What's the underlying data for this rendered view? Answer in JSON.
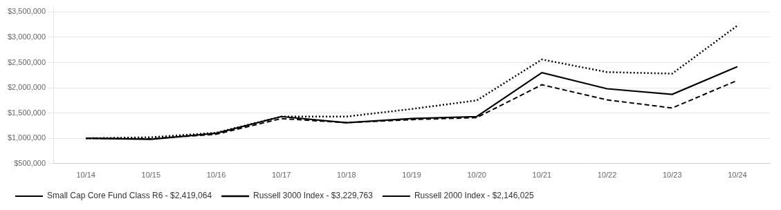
{
  "chart_data": {
    "type": "line",
    "categories": [
      "10/14",
      "10/15",
      "10/16",
      "10/17",
      "10/18",
      "10/19",
      "10/20",
      "10/21",
      "10/22",
      "10/23",
      "10/24"
    ],
    "series": [
      {
        "name": "Small Cap Core Fund Class R6 - $2,419,064",
        "color": "#000000",
        "line_style": "solid",
        "values": [
          1000000,
          980000,
          1100000,
          1430000,
          1310000,
          1390000,
          1430000,
          2300000,
          1980000,
          1870000,
          2419064
        ]
      },
      {
        "name": "Russell 3000 Index - $3,229,763",
        "color": "#000000",
        "line_style": "dotted",
        "values": [
          1000000,
          1020000,
          1110000,
          1430000,
          1430000,
          1580000,
          1750000,
          2560000,
          2310000,
          2280000,
          3229763
        ]
      },
      {
        "name": "Russell 2000 Index - $2,146,025",
        "color": "#000000",
        "line_style": "dashed",
        "values": [
          1000000,
          990000,
          1080000,
          1390000,
          1310000,
          1370000,
          1410000,
          2060000,
          1760000,
          1600000,
          2146025
        ]
      }
    ],
    "ylim": [
      500000,
      3600000
    ],
    "yticks": [
      {
        "value": 500000,
        "label": "$500,000"
      },
      {
        "value": 1000000,
        "label": "$1,000,000"
      },
      {
        "value": 1500000,
        "label": "$1,500,000"
      },
      {
        "value": 2000000,
        "label": "$2,000,000"
      },
      {
        "value": 2500000,
        "label": "$2,500,000"
      },
      {
        "value": 3000000,
        "label": "$3,000,000"
      },
      {
        "value": 3500000,
        "label": "$3,500,000"
      }
    ],
    "grid": true,
    "legend": "bottom"
  }
}
